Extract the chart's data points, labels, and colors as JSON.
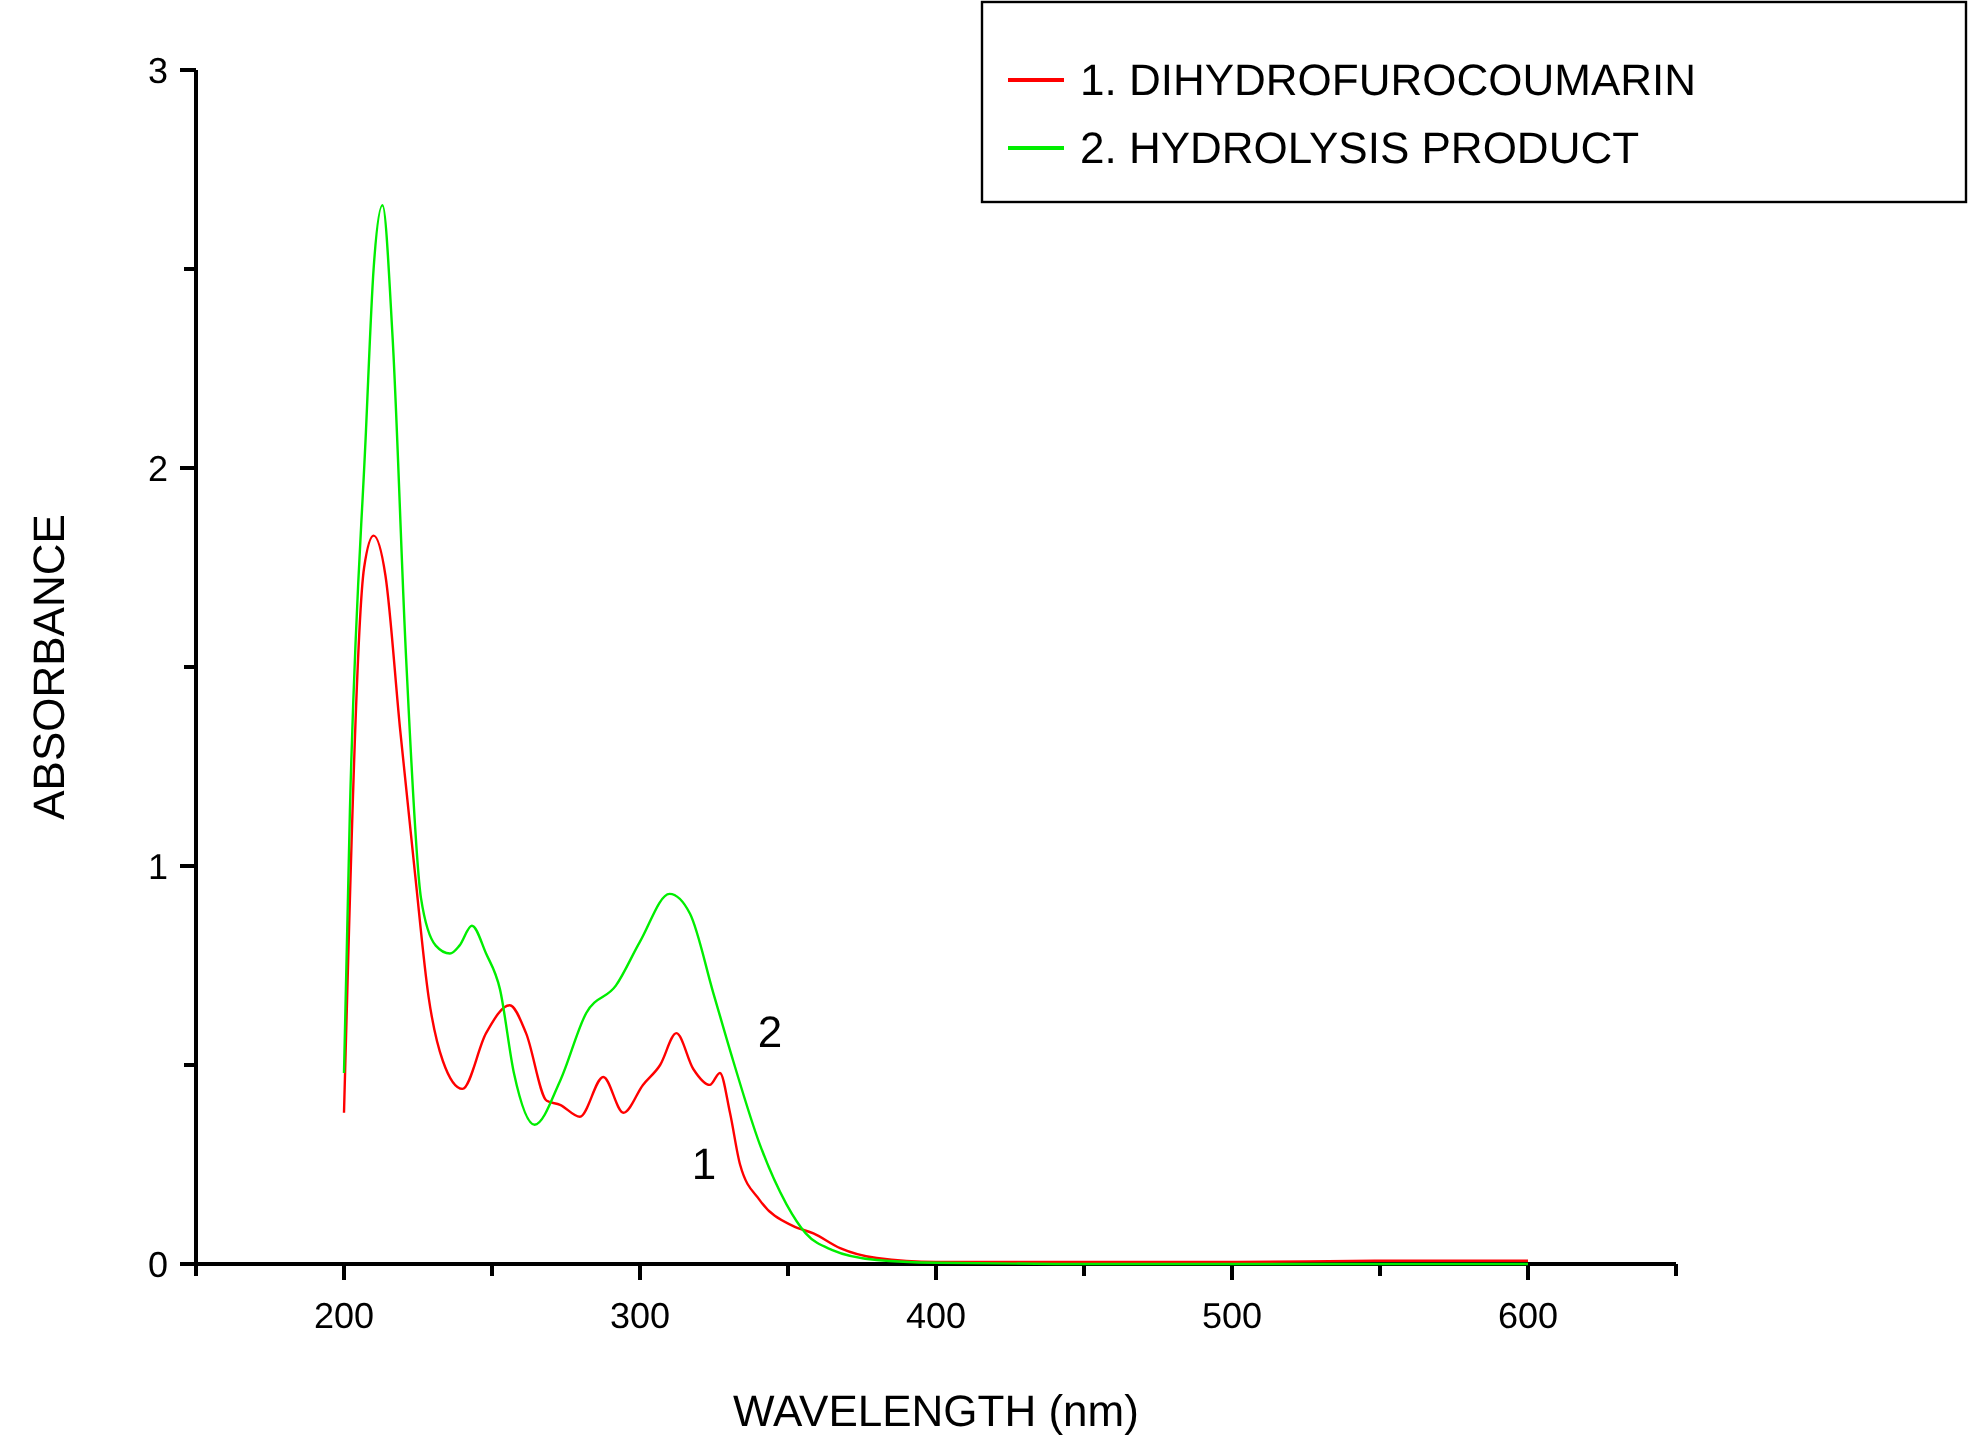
{
  "chart_data": {
    "type": "line",
    "xlabel": "WAVELENGTH (nm)",
    "ylabel": "ABSORBANCE",
    "xlim": [
      150,
      650
    ],
    "ylim": [
      0,
      3
    ],
    "xticks": [
      {
        "value": 150,
        "label": null
      },
      200,
      {
        "value": 250,
        "label": null
      },
      300,
      {
        "value": 350,
        "label": null
      },
      400,
      {
        "value": 450,
        "label": null
      },
      500,
      {
        "value": 550,
        "label": null
      },
      600,
      {
        "value": 650,
        "label": null
      }
    ],
    "yticks": [
      0,
      {
        "value": 0.5,
        "label": null
      },
      1,
      {
        "value": 1.5,
        "label": null
      },
      2,
      {
        "value": 2.5,
        "label": null
      },
      3
    ],
    "grid": false,
    "legend": "top right",
    "marker": "none",
    "line_style": "solid",
    "series": [
      {
        "name": "1. DIHYDROFUROCOUMARIN",
        "color": "#ff0000",
        "x": [
          200,
          202,
          206.8,
          210,
          214,
          219,
          224,
          228.6,
          233.4,
          240,
          248,
          256,
          261.5,
          268.5,
          273,
          279.7,
          287.6,
          294.4,
          301,
          306.8,
          312.3,
          318,
          323.6,
          327,
          330.4,
          333.8,
          340.5,
          351.8,
          358.6,
          367.6,
          380,
          400,
          450,
          500,
          550,
          600
        ],
        "values": [
          0.38,
          null,
          1.75,
          1.83,
          1.73,
          1.34,
          0.98,
          0.67,
          0.51,
          0.44,
          0.58,
          0.65,
          0.58,
          0.41,
          0.4,
          0.37,
          0.47,
          0.38,
          0.45,
          0.5,
          0.58,
          0.49,
          0.45,
          0.48,
          0.38,
          0.25,
          0.16,
          0.095,
          0.077,
          0.04,
          0.015,
          0.005,
          0.005,
          0.005,
          0.008,
          0.008
        ]
      },
      {
        "name": "2. HYDROLYSIS PRODUCT",
        "color": "#00ee00",
        "x": [
          200,
          202,
          207.4,
          210,
          213,
          216.4,
          221,
          226,
          231,
          235.8,
          239,
          243.2,
          248,
          252.7,
          257.4,
          264.4,
          273,
          281.8,
          291.9,
          300,
          310,
          316.9,
          324.8,
          331.5,
          340.5,
          349.5,
          356,
          365,
          380,
          400,
          450,
          500,
          550,
          600
        ],
        "values": [
          0.48,
          1.14,
          2.09,
          2.5,
          2.66,
          2.33,
          1.52,
          0.92,
          0.8,
          0.78,
          0.8,
          0.85,
          0.78,
          0.69,
          0.48,
          0.35,
          0.46,
          0.63,
          0.7,
          0.81,
          0.93,
          0.88,
          0.68,
          0.51,
          0.3,
          0.15,
          0.077,
          0.035,
          0.01,
          0.003,
          0,
          0,
          0,
          0
        ]
      }
    ],
    "annotations": [
      "1",
      "2"
    ]
  }
}
